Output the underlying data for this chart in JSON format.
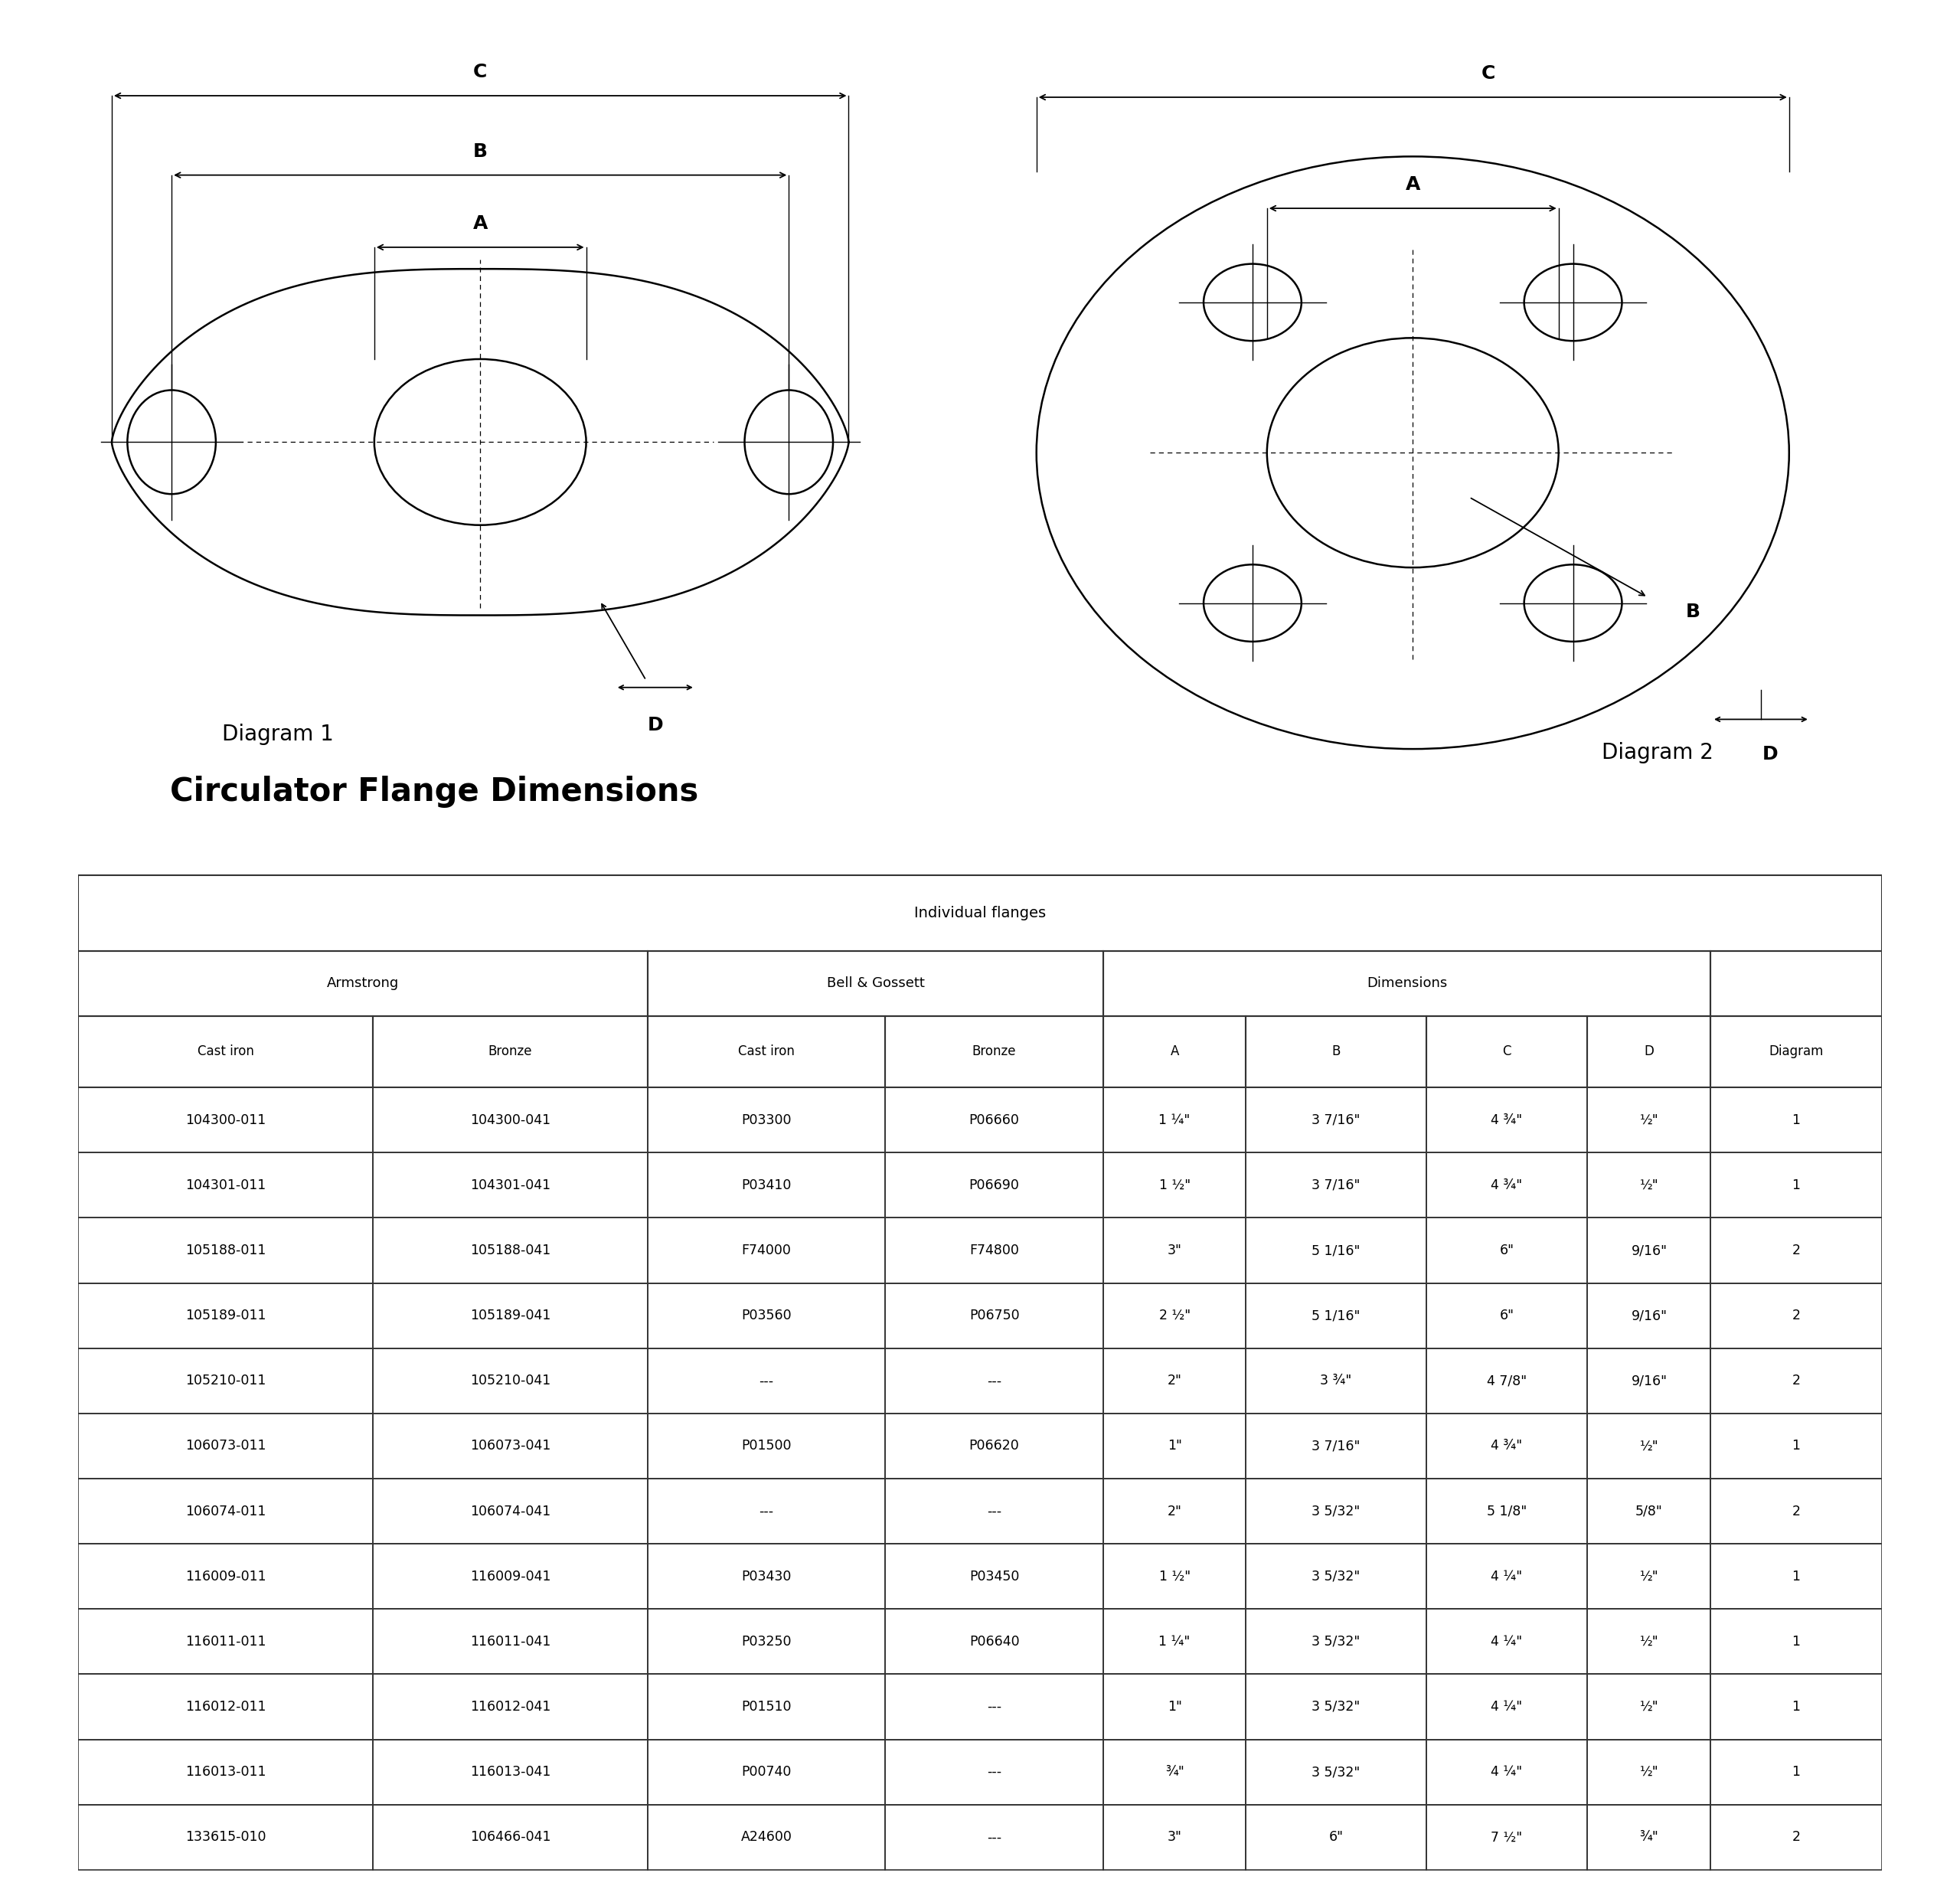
{
  "title": "Circulator Flange Dimensions",
  "table_header_row3": [
    "Cast iron",
    "Bronze",
    "Cast iron",
    "Bronze",
    "A",
    "B",
    "C",
    "D",
    "Diagram"
  ],
  "table_data": [
    [
      "104300-011",
      "104300-041",
      "P03300",
      "P06660",
      "1 ¼\"",
      "3 7/16\"",
      "4 ¾\"",
      "½\"",
      "1"
    ],
    [
      "104301-011",
      "104301-041",
      "P03410",
      "P06690",
      "1 ½\"",
      "3 7/16\"",
      "4 ¾\"",
      "½\"",
      "1"
    ],
    [
      "105188-011",
      "105188-041",
      "F74000",
      "F74800",
      "3\"",
      "5 1/16\"",
      "6\"",
      "9/16\"",
      "2"
    ],
    [
      "105189-011",
      "105189-041",
      "P03560",
      "P06750",
      "2 ½\"",
      "5 1/16\"",
      "6\"",
      "9/16\"",
      "2"
    ],
    [
      "105210-011",
      "105210-041",
      "---",
      "---",
      "2\"",
      "3 ¾\"",
      "4 7/8\"",
      "9/16\"",
      "2"
    ],
    [
      "106073-011",
      "106073-041",
      "P01500",
      "P06620",
      "1\"",
      "3 7/16\"",
      "4 ¾\"",
      "½\"",
      "1"
    ],
    [
      "106074-011",
      "106074-041",
      "---",
      "---",
      "2\"",
      "3 5/32\"",
      "5 1/8\"",
      "5/8\"",
      "2"
    ],
    [
      "116009-011",
      "116009-041",
      "P03430",
      "P03450",
      "1 ½\"",
      "3 5/32\"",
      "4 ¼\"",
      "½\"",
      "1"
    ],
    [
      "116011-011",
      "116011-041",
      "P03250",
      "P06640",
      "1 ¼\"",
      "3 5/32\"",
      "4 ¼\"",
      "½\"",
      "1"
    ],
    [
      "116012-011",
      "116012-041",
      "P01510",
      "---",
      "1\"",
      "3 5/32\"",
      "4 ¼\"",
      "½\"",
      "1"
    ],
    [
      "116013-011",
      "116013-041",
      "P00740",
      "---",
      "¾\"",
      "3 5/32\"",
      "4 ¼\"",
      "½\"",
      "1"
    ],
    [
      "133615-010",
      "106466-041",
      "A24600",
      "---",
      "3\"",
      "6\"",
      "7 ½\"",
      "¾\"",
      "2"
    ]
  ],
  "diagram1_label": "Diagram 1",
  "diagram2_label": "Diagram 2",
  "bg_color": "#ffffff",
  "line_color": "#000000",
  "text_color": "#000000"
}
